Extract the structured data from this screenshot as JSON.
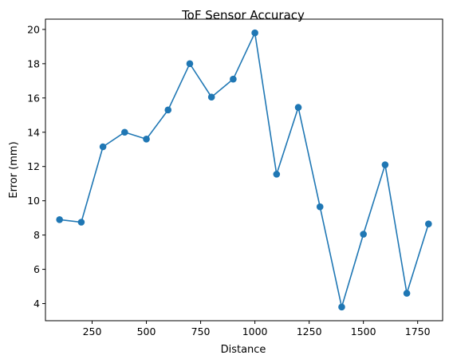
{
  "chart_data": {
    "type": "line",
    "title": "ToF Sensor Accuracy",
    "xlabel": "Distance",
    "ylabel": "Error (mm)",
    "xlim": [
      35,
      1865
    ],
    "ylim": [
      3.0,
      20.6
    ],
    "xticks": [
      250,
      500,
      750,
      1000,
      1250,
      1500,
      1750
    ],
    "yticks": [
      4,
      6,
      8,
      10,
      12,
      14,
      16,
      18,
      20
    ],
    "grid": false,
    "color": "#1f77b4",
    "marker": "circle",
    "x": [
      100,
      200,
      300,
      400,
      500,
      600,
      700,
      800,
      900,
      1000,
      1100,
      1200,
      1300,
      1400,
      1500,
      1600,
      1700,
      1800
    ],
    "y": [
      8.9,
      8.75,
      13.15,
      14.0,
      13.6,
      15.3,
      18.0,
      16.05,
      17.1,
      19.8,
      11.55,
      15.45,
      9.65,
      3.8,
      8.05,
      12.1,
      4.6,
      8.65
    ]
  }
}
